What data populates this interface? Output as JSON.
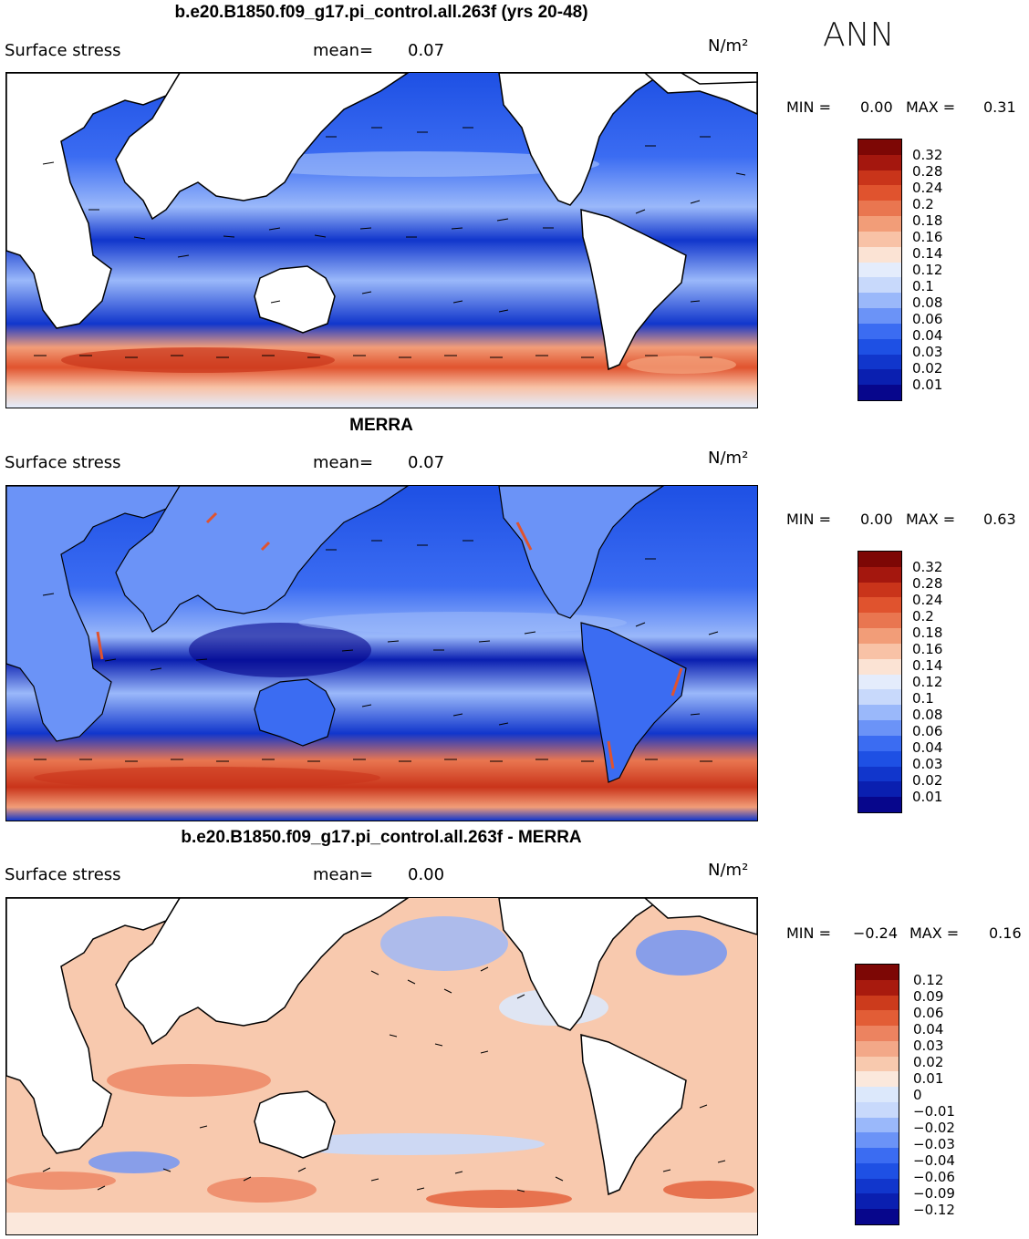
{
  "header": {
    "season": "ANN"
  },
  "colors": {
    "positive_scale": [
      "#07068c",
      "#0a1fb0",
      "#1136cc",
      "#1e50e4",
      "#3b6cf2",
      "#6b93f7",
      "#9ab8fa",
      "#c8d9fb",
      "#e4ecfc",
      "#fbe3d4",
      "#f8c2a6",
      "#f29d78",
      "#e97650",
      "#e0532e",
      "#c9341a",
      "#a4170e",
      "#7d0705"
    ],
    "diff_scale": [
      "#07068c",
      "#0a1fb0",
      "#1136cc",
      "#1e50e4",
      "#3b6cf2",
      "#6b93f7",
      "#9ab8fa",
      "#c8d9fb",
      "#dce8fb",
      "#fbe8dc",
      "#f8c9ae",
      "#f3a888",
      "#ec8360",
      "#e25d36",
      "#cc3b1c",
      "#a81a0e",
      "#7d0705"
    ],
    "land": "#ffffff",
    "coast": "#000000"
  },
  "panels": [
    {
      "title": "b.e20.B1850.f09_g17.pi_control.all.263f (yrs 20-48)",
      "variable": "Surface stress",
      "mean_label": "mean=",
      "mean_value": "0.07",
      "units": "N/m²",
      "min_label": "MIN =",
      "min_value": "0.00",
      "max_label": "MAX =",
      "max_value": "0.31",
      "colorbar_labels": [
        "0.32",
        "0.28",
        "0.24",
        "0.2",
        "0.18",
        "0.16",
        "0.14",
        "0.12",
        "0.1",
        "0.08",
        "0.06",
        "0.04",
        "0.03",
        "0.02",
        "0.01"
      ]
    },
    {
      "title": "MERRA",
      "variable": "Surface stress",
      "mean_label": "mean=",
      "mean_value": "0.07",
      "units": "N/m²",
      "min_label": "MIN =",
      "min_value": "0.00",
      "max_label": "MAX =",
      "max_value": "0.63",
      "colorbar_labels": [
        "0.32",
        "0.28",
        "0.24",
        "0.2",
        "0.18",
        "0.16",
        "0.14",
        "0.12",
        "0.1",
        "0.08",
        "0.06",
        "0.04",
        "0.03",
        "0.02",
        "0.01"
      ]
    },
    {
      "title": "b.e20.B1850.f09_g17.pi_control.all.263f - MERRA",
      "variable": "Surface stress",
      "mean_label": "mean=",
      "mean_value": "0.00",
      "units": "N/m²",
      "min_label": "MIN =",
      "min_value": "−0.24",
      "max_label": "MAX =",
      "max_value": "0.16",
      "colorbar_labels": [
        "0.12",
        "0.09",
        "0.06",
        "0.04",
        "0.03",
        "0.02",
        "0.01",
        "0",
        "−0.01",
        "−0.02",
        "−0.03",
        "−0.04",
        "−0.06",
        "−0.09",
        "−0.12"
      ]
    }
  ]
}
